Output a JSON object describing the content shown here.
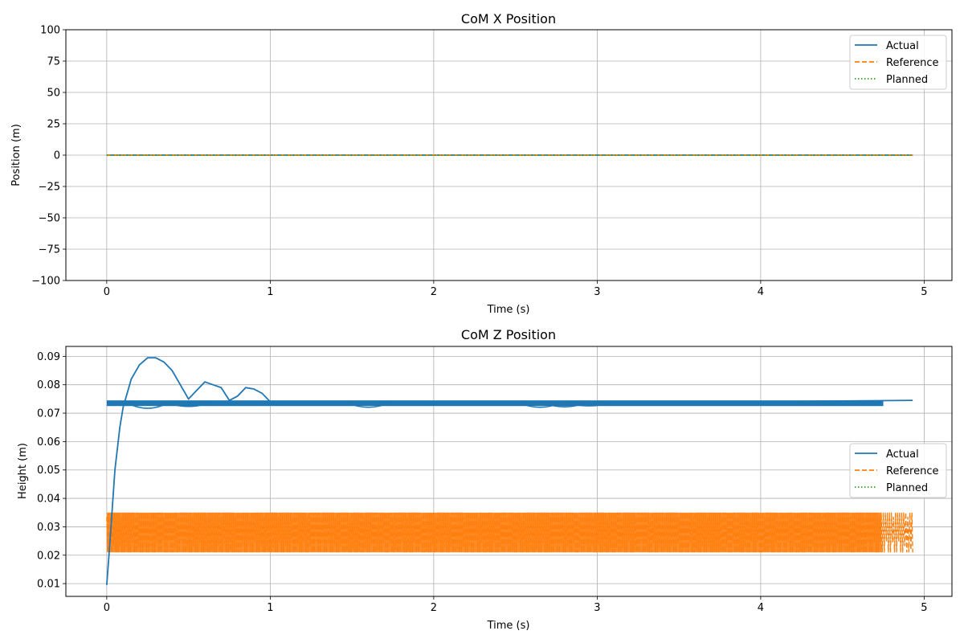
{
  "chart_data": [
    {
      "type": "line",
      "title": "CoM X Position",
      "xlabel": "Time (s)",
      "ylabel": "Position (m)",
      "xlim": [
        -0.25,
        5.17
      ],
      "ylim": [
        -100,
        100
      ],
      "xticks": [
        0,
        1,
        2,
        3,
        4,
        5
      ],
      "xtick_labels": [
        "0",
        "1",
        "2",
        "3",
        "4",
        "5"
      ],
      "yticks": [
        -100,
        -75,
        -50,
        -25,
        0,
        25,
        50,
        75,
        100
      ],
      "ytick_labels": [
        "−100",
        "−75",
        "−50",
        "−25",
        "0",
        "25",
        "50",
        "75",
        "100"
      ],
      "grid": true,
      "legend_position": "top-right",
      "legend": [
        "Actual",
        "Reference",
        "Planned"
      ],
      "series": [
        {
          "name": "Actual",
          "color": "#1f77b4",
          "style": "solid",
          "x": [
            0,
            4.93
          ],
          "values": [
            0,
            0
          ]
        },
        {
          "name": "Reference",
          "color": "#ff7f0e",
          "style": "dashed",
          "x": [
            0,
            4.93
          ],
          "values": [
            0,
            0
          ]
        },
        {
          "name": "Planned",
          "color": "#2ca02c",
          "style": "dotted",
          "x": [
            0,
            4.93
          ],
          "values": [
            0,
            0
          ]
        }
      ]
    },
    {
      "type": "line",
      "title": "CoM Z Position",
      "xlabel": "Time (s)",
      "ylabel": "Height (m)",
      "xlim": [
        -0.25,
        5.17
      ],
      "ylim": [
        0.0055,
        0.0935
      ],
      "xticks": [
        0,
        1,
        2,
        3,
        4,
        5
      ],
      "xtick_labels": [
        "0",
        "1",
        "2",
        "3",
        "4",
        "5"
      ],
      "yticks": [
        0.01,
        0.02,
        0.03,
        0.04,
        0.05,
        0.06,
        0.07,
        0.08,
        0.09
      ],
      "ytick_labels": [
        "0.01",
        "0.02",
        "0.03",
        "0.04",
        "0.05",
        "0.06",
        "0.07",
        "0.08",
        "0.09"
      ],
      "grid": true,
      "legend_position": "center-right",
      "legend": [
        "Actual",
        "Reference",
        "Planned"
      ],
      "series": [
        {
          "name": "Actual",
          "color": "#1f77b4",
          "style": "solid",
          "x": [
            0,
            0.02,
            0.05,
            0.08,
            0.1,
            0.15,
            0.2,
            0.25,
            0.3,
            0.35,
            0.4,
            0.45,
            0.5,
            0.55,
            0.6,
            0.65,
            0.7,
            0.75,
            0.8,
            0.85,
            0.9,
            0.95,
            1.0,
            1.5,
            2.0,
            2.5,
            3.0,
            3.5,
            4.0,
            4.5,
            4.93
          ],
          "values": [
            0.0095,
            0.025,
            0.05,
            0.065,
            0.072,
            0.082,
            0.087,
            0.0895,
            0.0895,
            0.088,
            0.085,
            0.08,
            0.075,
            0.078,
            0.081,
            0.08,
            0.079,
            0.0745,
            0.076,
            0.079,
            0.0785,
            0.077,
            0.074,
            0.074,
            0.074,
            0.074,
            0.074,
            0.074,
            0.074,
            0.0743,
            0.0745
          ]
        },
        {
          "name": "Reference",
          "color": "#ff7f0e",
          "style": "dashed",
          "x": [
            0,
            4.93
          ],
          "range": [
            0.021,
            0.035
          ]
        },
        {
          "name": "Planned",
          "color": "#2ca02c",
          "style": "dotted",
          "x": [
            0,
            4.93
          ],
          "range": [
            0.021,
            0.035
          ]
        }
      ]
    }
  ]
}
